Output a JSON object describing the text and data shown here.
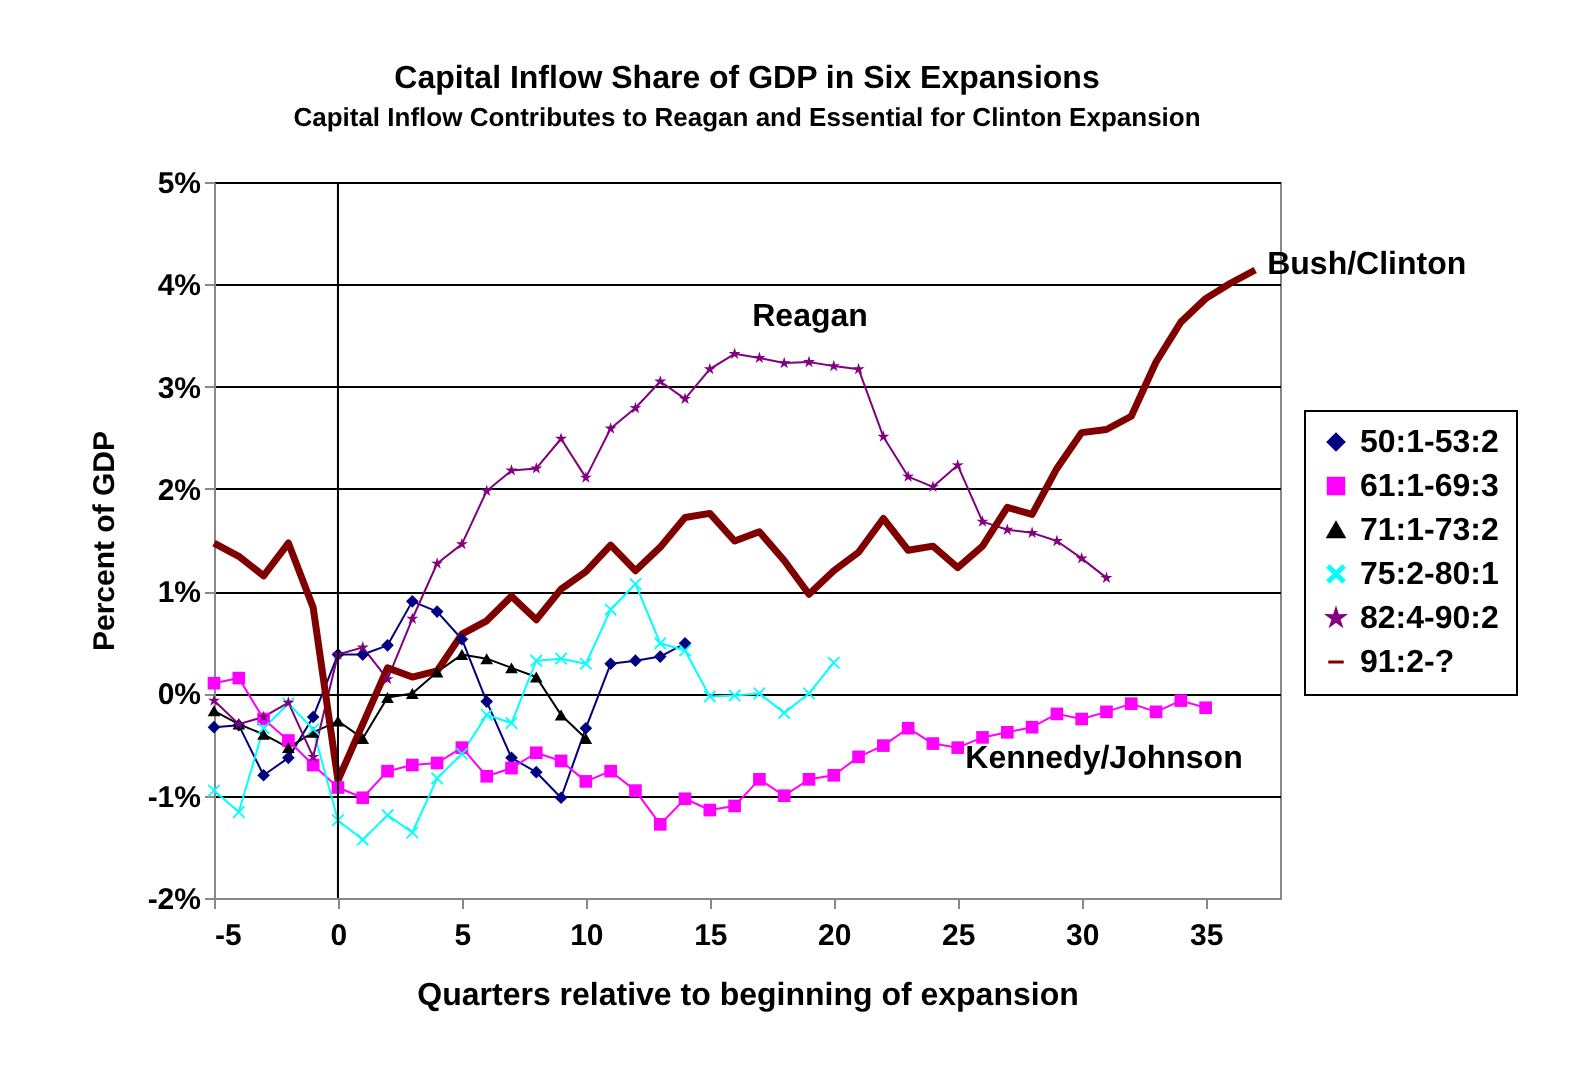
{
  "chart_data": {
    "type": "line",
    "title": "Capital Inflow Share of GDP in Six Expansions",
    "subtitle": "Capital Inflow Contributes to Reagan and Essential for Clinton Expansion",
    "xlabel": "Quarters relative to beginning of expansion",
    "ylabel": "Percent of GDP",
    "xlim": [
      -5,
      38
    ],
    "xticks": [
      -5,
      0,
      5,
      10,
      15,
      20,
      25,
      30,
      35
    ],
    "ylim": [
      -2,
      5
    ],
    "yticks": [
      {
        "value": -2,
        "label": "-2%"
      },
      {
        "value": -1,
        "label": "-1%"
      },
      {
        "value": 0,
        "label": "0%"
      },
      {
        "value": 1,
        "label": "1%"
      },
      {
        "value": 2,
        "label": "2%"
      },
      {
        "value": 3,
        "label": "3%"
      },
      {
        "value": 4,
        "label": "4%"
      },
      {
        "value": 5,
        "label": "5%"
      }
    ],
    "grid": "y",
    "legend": "right",
    "ref_lines": [
      {
        "axis": "x",
        "value": 0,
        "color": "#000000"
      }
    ],
    "annotations": [
      "Reagan",
      {
        "text": "Bush/Clinton",
        "x": 37,
        "y": 4.2
      },
      "Kennedy/Johnson"
    ],
    "series": [
      {
        "name": "50:1-53:2",
        "color": "#000080",
        "marker": "diamond",
        "x": [
          -5,
          -4,
          -3,
          -2,
          -1,
          0,
          1,
          2,
          3,
          4,
          5,
          6,
          7,
          8,
          9,
          10,
          11,
          12,
          13,
          14
        ],
        "values": [
          -0.33,
          -0.31,
          -0.8,
          -0.63,
          -0.23,
          0.38,
          0.38,
          0.47,
          0.9,
          0.8,
          0.53,
          -0.08,
          -0.63,
          -0.77,
          -1.02,
          -0.34,
          0.29,
          0.32,
          0.36,
          0.49
        ]
      },
      {
        "name": "61:1-69:3",
        "color": "#ff00ff",
        "marker": "square",
        "x": [
          -5,
          -4,
          -3,
          -2,
          -1,
          0,
          1,
          2,
          3,
          4,
          5,
          6,
          7,
          8,
          9,
          10,
          11,
          12,
          13,
          14,
          15,
          16,
          17,
          18,
          19,
          20,
          21,
          22,
          23,
          24,
          25,
          26,
          27,
          28,
          29,
          30,
          31,
          32,
          33,
          34,
          35
        ],
        "values": [
          0.1,
          0.15,
          -0.25,
          -0.46,
          -0.7,
          -0.92,
          -1.02,
          -0.76,
          -0.7,
          -0.68,
          -0.53,
          -0.81,
          -0.73,
          -0.58,
          -0.66,
          -0.86,
          -0.76,
          -0.95,
          -1.28,
          -1.03,
          -1.14,
          -1.1,
          -0.84,
          -1.0,
          -0.84,
          -0.8,
          -0.62,
          -0.51,
          -0.34,
          -0.49,
          -0.53,
          -0.43,
          -0.38,
          -0.33,
          -0.2,
          -0.25,
          -0.18,
          -0.1,
          -0.18,
          -0.07,
          -0.14
        ]
      },
      {
        "name": "71:1-73:2",
        "color": "#000000",
        "marker": "triangle",
        "x": [
          -5,
          -4,
          -3,
          -2,
          -1,
          0,
          1,
          2,
          3,
          4,
          5,
          6,
          7,
          8,
          9,
          10
        ],
        "values": [
          -0.17,
          -0.3,
          -0.4,
          -0.53,
          -0.38,
          -0.27,
          -0.44,
          -0.04,
          0.0,
          0.21,
          0.38,
          0.34,
          0.25,
          0.16,
          -0.21,
          -0.44
        ]
      },
      {
        "name": "75:2-80:1",
        "color": "#00ffff",
        "marker": "cross",
        "x": [
          -5,
          -4,
          -3,
          -2,
          -1,
          0,
          1,
          2,
          3,
          4,
          5,
          6,
          7,
          8,
          9,
          10,
          11,
          12,
          13,
          14,
          15,
          16,
          17,
          18,
          19,
          20
        ],
        "values": [
          -0.95,
          -1.16,
          -0.34,
          -0.1,
          -0.35,
          -1.24,
          -1.43,
          -1.19,
          -1.36,
          -0.83,
          -0.59,
          -0.21,
          -0.29,
          0.32,
          0.34,
          0.29,
          0.82,
          1.07,
          0.49,
          0.42,
          -0.03,
          -0.02,
          0.0,
          -0.19,
          0.0,
          0.3
        ]
      },
      {
        "name": "82:4-90:2",
        "color": "#800080",
        "marker": "star",
        "x": [
          -5,
          -4,
          -3,
          -2,
          -1,
          0,
          1,
          2,
          3,
          4,
          5,
          6,
          7,
          8,
          9,
          10,
          11,
          12,
          13,
          14,
          15,
          16,
          17,
          18,
          19,
          20,
          21,
          22,
          23,
          24,
          25,
          26,
          27,
          28,
          29,
          30,
          31
        ],
        "values": [
          -0.07,
          -0.3,
          -0.23,
          -0.09,
          -0.62,
          0.38,
          0.45,
          0.14,
          0.73,
          1.27,
          1.46,
          1.98,
          2.18,
          2.2,
          2.49,
          2.11,
          2.59,
          2.79,
          3.05,
          2.88,
          3.17,
          3.32,
          3.28,
          3.23,
          3.24,
          3.2,
          3.17,
          2.51,
          2.12,
          2.02,
          2.23,
          1.68,
          1.6,
          1.57,
          1.49,
          1.32,
          1.13
        ]
      },
      {
        "name": "91:2-?",
        "color": "#800000",
        "marker": "none",
        "x": [
          -5,
          -4,
          -3,
          -2,
          -1,
          0,
          1,
          2,
          3,
          4,
          5,
          6,
          7,
          8,
          9,
          10,
          11,
          12,
          13,
          14,
          15,
          16,
          17,
          18,
          19,
          20,
          21,
          22,
          23,
          24,
          25,
          26,
          27,
          28,
          29,
          30,
          31,
          32,
          33,
          34,
          35,
          36,
          37
        ],
        "values": [
          1.47,
          1.34,
          1.15,
          1.47,
          0.84,
          -0.85,
          -0.3,
          0.25,
          0.16,
          0.22,
          0.58,
          0.71,
          0.95,
          0.72,
          1.02,
          1.19,
          1.45,
          1.2,
          1.43,
          1.72,
          1.76,
          1.49,
          1.58,
          1.3,
          0.97,
          1.2,
          1.38,
          1.71,
          1.4,
          1.44,
          1.23,
          1.44,
          1.82,
          1.75,
          2.2,
          2.55,
          2.58,
          2.71,
          3.24,
          3.63,
          3.86,
          4.01,
          4.14
        ]
      }
    ]
  }
}
